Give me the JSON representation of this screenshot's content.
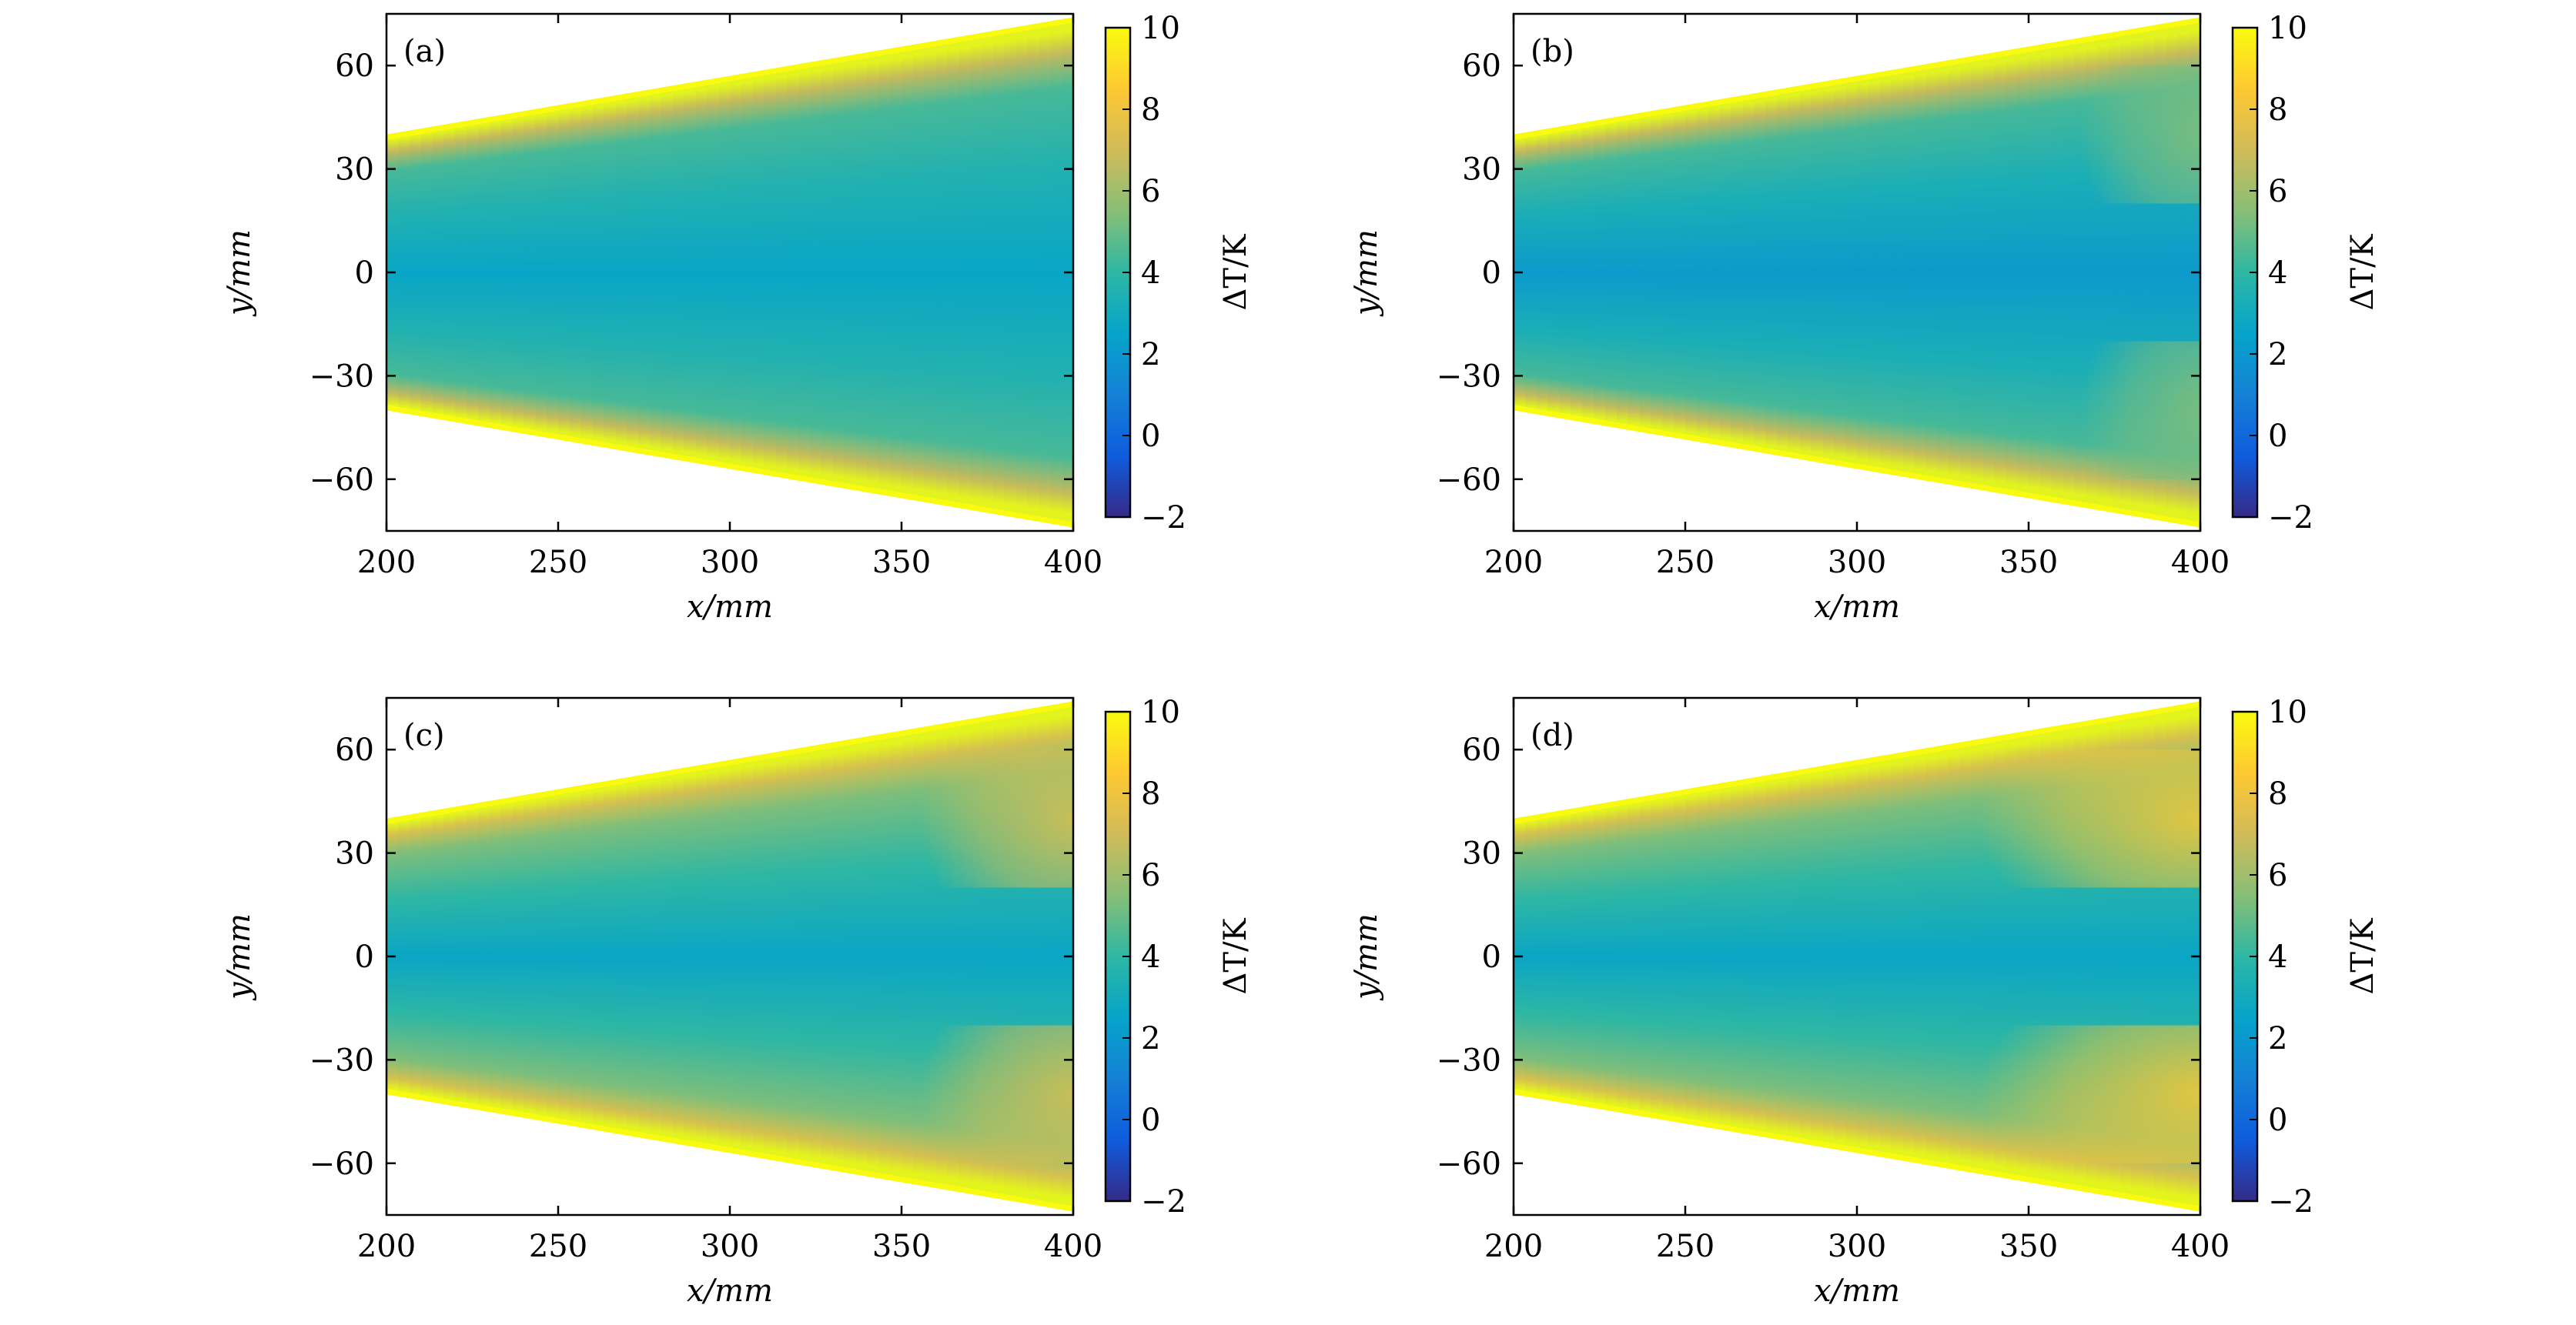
{
  "chart_data": {
    "type": "heatmap",
    "layout": "2x2 grid",
    "shared": {
      "xlabel": "x/mm",
      "ylabel": "y/mm",
      "xlim": [
        200,
        400
      ],
      "ylim": [
        -75,
        75
      ],
      "xticks": [
        200,
        250,
        300,
        350,
        400
      ],
      "yticks": [
        60,
        30,
        0,
        -30,
        -60
      ],
      "xtick_labels": [
        "200",
        "250",
        "300",
        "350",
        "400"
      ],
      "ytick_labels": [
        "60",
        "30",
        "0",
        "−30",
        "−60"
      ],
      "region_boundary": {
        "x": [
          200,
          400
        ],
        "y_upper": [
          40,
          74
        ],
        "y_lower": [
          -40,
          -74
        ]
      },
      "colorbar": {
        "label": "ΔT/K",
        "range": [
          -2,
          10
        ],
        "ticks": [
          10,
          8,
          6,
          4,
          2,
          0,
          -2
        ],
        "tick_labels": [
          "10",
          "8",
          "6",
          "4",
          "2",
          "0",
          "−2"
        ],
        "colormap": [
          "#352a87",
          "#0f5cdd",
          "#1481d6",
          "#06a4ca",
          "#2eb7a4",
          "#87bf77",
          "#d1bb59",
          "#fec832",
          "#f9fb0e"
        ]
      }
    },
    "panels": [
      {
        "label": "(a)",
        "center_dT": 2.5,
        "edge_dT": 4.5,
        "rim_dT": 10,
        "hot_lobes_dT": 4.5,
        "lobe_start_x": 400
      },
      {
        "label": "(b)",
        "center_dT": 2.0,
        "edge_dT": 4.5,
        "rim_dT": 10,
        "hot_lobes_dT": 5.5,
        "lobe_start_x": 365
      },
      {
        "label": "(c)",
        "center_dT": 2.5,
        "edge_dT": 5.5,
        "rim_dT": 10,
        "hot_lobes_dT": 7.5,
        "lobe_start_x": 355
      },
      {
        "label": "(d)",
        "center_dT": 2.5,
        "edge_dT": 5.5,
        "rim_dT": 10,
        "hot_lobes_dT": 8.5,
        "lobe_start_x": 335
      }
    ]
  }
}
